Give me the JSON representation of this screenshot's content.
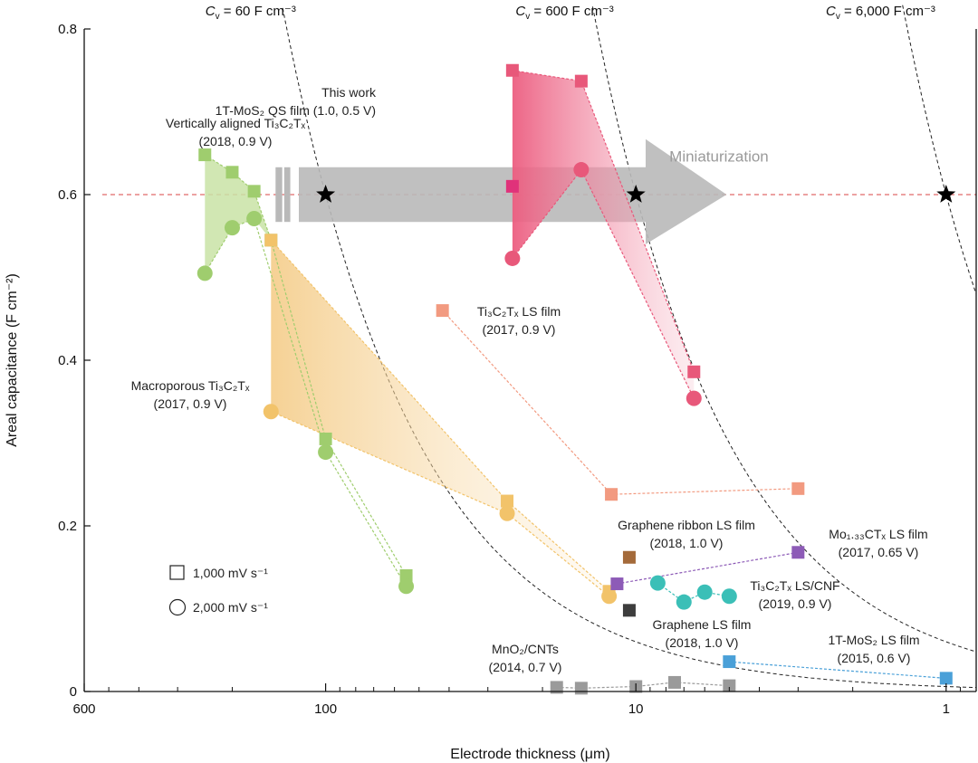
{
  "chart_data": {
    "type": "scatter",
    "xlabel": "Electrode thickness (μm)",
    "ylabel": "Areal capacitance (F cm⁻²)",
    "x_scale": "log-reversed",
    "xlim": [
      600,
      0.8
    ],
    "ylim": [
      0,
      0.8
    ],
    "x_ticks": [
      {
        "value": 600,
        "label": "600"
      },
      {
        "value": 100,
        "label": "100"
      },
      {
        "value": 10,
        "label": "10"
      },
      {
        "value": 1,
        "label": "1"
      }
    ],
    "y_ticks": [
      {
        "value": 0,
        "label": "0"
      },
      {
        "value": 0.2,
        "label": "0.2"
      },
      {
        "value": 0.4,
        "label": "0.4"
      },
      {
        "value": 0.6,
        "label": "0.6"
      },
      {
        "value": 0.8,
        "label": "0.8"
      }
    ],
    "reference_line": {
      "y": 0.6,
      "color": "#e06a6a",
      "stars_x": [
        100,
        10,
        1
      ]
    },
    "volumetric_curves": [
      {
        "cv": 60,
        "label_text": "= 60 F cm⁻³"
      },
      {
        "cv": 600,
        "label_text": "= 600 F cm⁻³"
      },
      {
        "cv": 6000,
        "label_text": "= 6,000 F cm⁻³"
      }
    ],
    "cv_symbol": "C",
    "cv_subscript": "v",
    "arrow_label": "Miniaturization",
    "legend": [
      {
        "marker": "square",
        "label": "1,000 mV s⁻¹"
      },
      {
        "marker": "circle",
        "label": "2,000 mV s⁻¹"
      }
    ],
    "series": [
      {
        "name": "This work 1T-MoS₂ QS film",
        "color": "#e8587a",
        "fill": "#f07a95",
        "label_lines": [
          "This work",
          "1T-MoS₂ QS film (1.0, 0.5 V)"
        ],
        "squares": [
          [
            25,
            0.75
          ],
          [
            15,
            0.737
          ],
          [
            6.5,
            0.386
          ]
        ],
        "square_highlight": [
          [
            25,
            0.61
          ]
        ],
        "circles": [
          [
            25,
            0.523
          ],
          [
            15,
            0.63
          ],
          [
            6.5,
            0.354
          ]
        ]
      },
      {
        "name": "Vertically aligned Ti₃C₂Tₓ",
        "color": "#9fcd6e",
        "fill": "#c9e3a6",
        "label_lines": [
          "Vertically aligned Ti₃C₂Tₓ",
          "(2018, 0.9 V)"
        ],
        "squares": [
          [
            245,
            0.648
          ],
          [
            200,
            0.627
          ],
          [
            170,
            0.604
          ],
          [
            150,
            0.545
          ],
          [
            100,
            0.305
          ],
          [
            55,
            0.14
          ]
        ],
        "circles": [
          [
            245,
            0.505
          ],
          [
            200,
            0.56
          ],
          [
            170,
            0.571
          ],
          [
            100,
            0.289
          ],
          [
            55,
            0.127
          ]
        ]
      },
      {
        "name": "Macroporous Ti₃C₂Tₓ",
        "color": "#f2c36a",
        "fill": "#f7d9a2",
        "label_lines": [
          "Macroporous Ti₃C₂Tₓ",
          "(2017, 0.9 V)"
        ],
        "squares": [
          [
            150,
            0.545
          ],
          [
            26,
            0.23
          ],
          [
            12.2,
            0.121
          ]
        ],
        "circles": [
          [
            150,
            0.338
          ],
          [
            26,
            0.215
          ],
          [
            12.2,
            0.115
          ]
        ]
      },
      {
        "name": "Ti₃C₂Tₓ LS film",
        "color": "#f29a80",
        "label_lines": [
          "Ti₃C₂Tₓ LS film",
          "(2017, 0.9 V)"
        ],
        "squares": [
          [
            42,
            0.46
          ],
          [
            12,
            0.238
          ],
          [
            3,
            0.245
          ]
        ]
      },
      {
        "name": "Graphene ribbon LS film",
        "color": "#a46a3a",
        "label_lines": [
          "Graphene ribbon LS film",
          "(2018, 1.0 V)"
        ],
        "squares": [
          [
            10.5,
            0.162
          ]
        ]
      },
      {
        "name": "Graphene LS film",
        "color": "#3d3d3d",
        "label_lines": [
          "Graphene LS film",
          "(2018, 1.0 V)"
        ],
        "squares": [
          [
            10.5,
            0.098
          ]
        ]
      },
      {
        "name": "Mo₁.₃₃CTₓ LS film",
        "color": "#8d5bb7",
        "label_lines": [
          "Mo₁.₃₃CTₓ LS film",
          "(2017, 0.65 V)"
        ],
        "squares": [
          [
            11.5,
            0.13
          ],
          [
            3,
            0.168
          ]
        ]
      },
      {
        "name": "Ti₃C₂Tₓ LS/CNF",
        "color": "#3bbfb7",
        "label_lines": [
          "Ti₃C₂Tₓ LS/CNF",
          "(2019, 0.9 V)"
        ],
        "circles": [
          [
            8.5,
            0.131
          ],
          [
            7,
            0.108
          ],
          [
            6,
            0.12
          ],
          [
            5,
            0.115
          ]
        ]
      },
      {
        "name": "1T-MoS₂ LS film",
        "color": "#4aa0d8",
        "label_lines": [
          "1T-MoS₂ LS film",
          "(2015, 0.6 V)"
        ],
        "squares": [
          [
            5,
            0.036
          ],
          [
            1,
            0.016
          ]
        ]
      },
      {
        "name": "MnO₂/CNTs",
        "color": "#9a9a9a",
        "label_lines": [
          "MnO₂/CNTs",
          "(2014, 0.7 V)"
        ],
        "squares": [
          [
            18,
            0.005
          ],
          [
            15,
            0.004
          ],
          [
            10,
            0.006
          ],
          [
            7.5,
            0.011
          ],
          [
            5,
            0.007
          ]
        ]
      }
    ]
  }
}
